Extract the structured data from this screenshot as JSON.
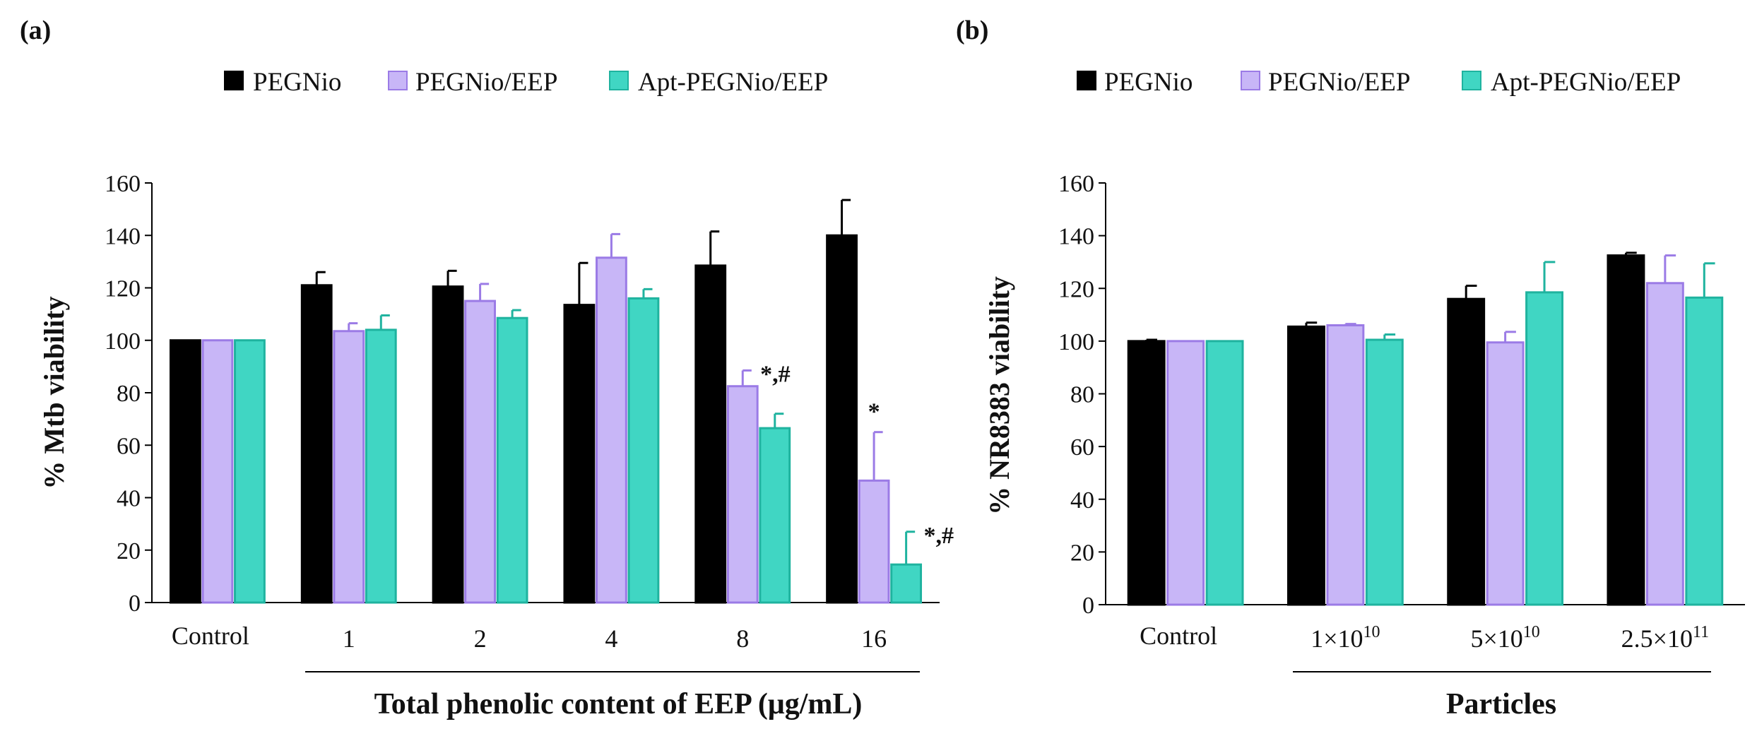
{
  "colors": {
    "series": [
      "#000000",
      "#c8b6f7",
      "#40d6c3"
    ],
    "series_stroke": [
      "#000000",
      "#9b7be6",
      "#1fb39f"
    ],
    "axis": "#000000"
  },
  "chart_data": [
    {
      "type": "bar",
      "panel_label": "(a)",
      "title": "",
      "ylabel": "% Mtb viability",
      "xlabel": "Total phenolic content of EEP (μg/mL)",
      "ylim": [
        0,
        160
      ],
      "yticks": [
        0,
        20,
        40,
        60,
        80,
        100,
        120,
        140,
        160
      ],
      "categories": [
        "Control",
        "1",
        "2",
        "4",
        "8",
        "16"
      ],
      "legend_position": "top",
      "series": [
        {
          "name": "PEGNio",
          "values": [
            100,
            121,
            120.5,
            113.5,
            128.5,
            140
          ],
          "errors": [
            0,
            5,
            6,
            16,
            13,
            13.5
          ]
        },
        {
          "name": "PEGNio/EEP",
          "values": [
            100,
            103.5,
            115,
            131.5,
            82.5,
            46.5
          ],
          "errors": [
            0,
            3,
            6.5,
            9,
            6,
            18.5
          ]
        },
        {
          "name": "Apt-PEGNio/EEP",
          "values": [
            100,
            104,
            108.5,
            116,
            66.5,
            14.5
          ],
          "errors": [
            0,
            5.5,
            3,
            3.5,
            5.5,
            12.5
          ]
        }
      ],
      "annotations": [
        {
          "category": "8",
          "series": "PEGNio/EEP",
          "text": "*,#"
        },
        {
          "category": "16",
          "series": "PEGNio/EEP",
          "text": "*"
        },
        {
          "category": "16",
          "series": "Apt-PEGNio/EEP",
          "text": "*,#"
        }
      ]
    },
    {
      "type": "bar",
      "panel_label": "(b)",
      "title": "",
      "ylabel": "% NR8383 viability",
      "xlabel": "Particles",
      "ylim": [
        0,
        160
      ],
      "yticks": [
        0,
        20,
        40,
        60,
        80,
        100,
        120,
        140,
        160
      ],
      "categories": [
        {
          "base": "Control",
          "exp": ""
        },
        {
          "base": "1×10",
          "exp": "10"
        },
        {
          "base": "5×10",
          "exp": "10"
        },
        {
          "base": "2.5×10",
          "exp": "11"
        }
      ],
      "legend_position": "top",
      "series": [
        {
          "name": "PEGNio",
          "values": [
            100,
            105.5,
            116,
            132.5
          ],
          "errors": [
            0.5,
            1.5,
            5,
            1
          ]
        },
        {
          "name": "PEGNio/EEP",
          "values": [
            100,
            106,
            99.5,
            122
          ],
          "errors": [
            0,
            0.5,
            4,
            10.5
          ]
        },
        {
          "name": "Apt-PEGNio/EEP",
          "values": [
            100,
            100.5,
            118.5,
            116.5
          ],
          "errors": [
            0,
            2,
            11.5,
            13
          ]
        }
      ],
      "annotations": []
    }
  ]
}
